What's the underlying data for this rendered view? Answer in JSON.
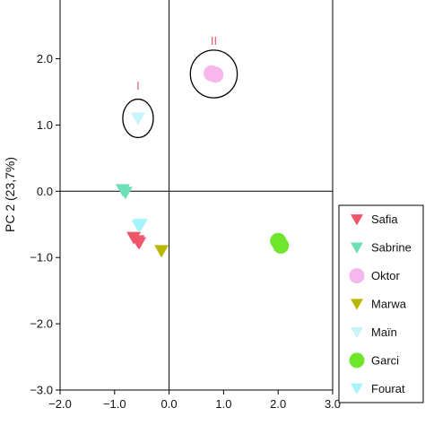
{
  "chart_data": {
    "type": "scatter",
    "xlabel": "",
    "ylabel": "PC 2 (23,7%)",
    "xlim": [
      -2.0,
      3.0
    ],
    "ylim": [
      -3.0,
      2.9
    ],
    "x_ticks": [
      "−2.0",
      "−1.0",
      "0.0",
      "1.0",
      "2.0",
      "3.0"
    ],
    "x_tick_values": [
      -2.0,
      -1.0,
      0.0,
      1.0,
      2.0,
      3.0
    ],
    "y_ticks": [
      "−3.0",
      "−2.0",
      "−1.0",
      "0.0",
      "1.0",
      "2.0"
    ],
    "y_tick_values": [
      -3.0,
      -2.0,
      -1.0,
      0.0,
      1.0,
      2.0
    ],
    "zero_lines": true,
    "legend_position": "right",
    "series": [
      {
        "name": "Safia",
        "marker": "triangle-down",
        "color": "#f0566a",
        "points": [
          {
            "x": -0.65,
            "y": -0.7
          },
          {
            "x": -0.58,
            "y": -0.75
          },
          {
            "x": -0.55,
            "y": -0.78
          }
        ]
      },
      {
        "name": "Sabrine",
        "marker": "triangle-down",
        "color": "#6fe0b6",
        "points": [
          {
            "x": -0.85,
            "y": 0.02
          },
          {
            "x": -0.8,
            "y": -0.02
          }
        ]
      },
      {
        "name": "Oktor",
        "marker": "circle",
        "color": "#f7b6ec",
        "points": [
          {
            "x": 0.78,
            "y": 1.78
          },
          {
            "x": 0.85,
            "y": 1.76
          }
        ]
      },
      {
        "name": "Marwa",
        "marker": "triangle-down",
        "color": "#b9b800",
        "points": [
          {
            "x": -0.14,
            "y": -0.9
          }
        ]
      },
      {
        "name": "Maïn",
        "marker": "triangle-down",
        "color": "#c6f4f8",
        "points": [
          {
            "x": -0.57,
            "y": 1.1
          }
        ]
      },
      {
        "name": "Garci",
        "marker": "circle",
        "color": "#6ee62a",
        "points": [
          {
            "x": 2.0,
            "y": -0.75
          },
          {
            "x": 2.05,
            "y": -0.82
          }
        ]
      },
      {
        "name": "Fourat",
        "marker": "triangle-down",
        "color": "#a7f3fb",
        "points": [
          {
            "x": -0.52,
            "y": -0.5
          },
          {
            "x": -0.56,
            "y": -0.52
          }
        ]
      }
    ],
    "annotations": [
      {
        "text": "I",
        "x": -0.57,
        "y": 1.53,
        "color": "#e05a6e",
        "ellipse": {
          "cx": -0.57,
          "cy": 1.1,
          "rx": 0.28,
          "ry": 0.29
        }
      },
      {
        "text": "II",
        "x": 0.82,
        "y": 2.21,
        "color": "#e05a6e",
        "ellipse": {
          "cx": 0.82,
          "cy": 1.77,
          "rx": 0.43,
          "ry": 0.36
        }
      }
    ]
  }
}
